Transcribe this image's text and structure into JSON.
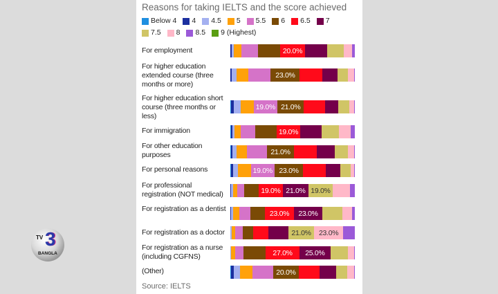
{
  "logo": {
    "tv": "TV",
    "number": "3",
    "name": "BANGLA"
  },
  "chart_data": {
    "type": "bar",
    "orientation": "horizontal-stacked-100",
    "title": "Reasons for taking IELTS and the score achieved",
    "source": "Source: IELTS",
    "legend": [
      {
        "name": "Below 4",
        "color": "#1f8fe0"
      },
      {
        "name": "4",
        "color": "#1c2fa0"
      },
      {
        "name": "4.5",
        "color": "#a4b0f0"
      },
      {
        "name": "5",
        "color": "#ffa10a"
      },
      {
        "name": "5.5",
        "color": "#d573c8"
      },
      {
        "name": "6",
        "color": "#7a4a05"
      },
      {
        "name": "6.5",
        "color": "#ff0a1a"
      },
      {
        "name": "7",
        "color": "#74004a"
      },
      {
        "name": "7.5",
        "color": "#d0c566"
      },
      {
        "name": "8",
        "color": "#ffb8c8"
      },
      {
        "name": "8.5",
        "color": "#9b5ad8"
      },
      {
        "name": "9 (Highest)",
        "color": "#5a9e12"
      }
    ],
    "label_colors": {
      "5.5": "#ffffff",
      "6": "#ffffff",
      "6.5": "#ffffff",
      "7": "#ffffff",
      "7.5": "#333333",
      "8": "#333333"
    },
    "categories": [
      "For employment",
      "For higher education extended course (three months or more)",
      "For higher education short course (three months or less)",
      "For immigration",
      "For other education purposes",
      "For personal reasons",
      "For professional registration (NOT medical)",
      "For registration as a dentist",
      "For registration as a doctor",
      "For registration as a nurse (including CGFNS)",
      "(Other)"
    ],
    "series": [
      {
        "name": "Below 4",
        "values": [
          0,
          0,
          0.5,
          0.5,
          0.5,
          0.5,
          0,
          0,
          0,
          0,
          0.5
        ]
      },
      {
        "name": "4",
        "values": [
          1,
          1,
          2,
          1,
          1,
          1.5,
          0.5,
          0.5,
          0,
          0,
          2
        ]
      },
      {
        "name": "4.5",
        "values": [
          2,
          4,
          5.5,
          2,
          3.5,
          4,
          2,
          2,
          1,
          0.5,
          5
        ]
      },
      {
        "name": "5",
        "values": [
          6,
          9,
          10.5,
          5,
          8,
          10.5,
          3,
          5,
          3,
          3.5,
          10
        ]
      },
      {
        "name": "5.5",
        "values": [
          13,
          18,
          19,
          11,
          16,
          19,
          5.5,
          8.5,
          6,
          6.5,
          17
        ]
      },
      {
        "name": "6",
        "values": [
          18,
          23,
          21,
          17,
          21,
          23,
          12,
          12,
          8.5,
          18,
          20
        ]
      },
      {
        "name": "6.5",
        "values": [
          20,
          18,
          17,
          19,
          18,
          18,
          19,
          23,
          12,
          27,
          17
        ]
      },
      {
        "name": "7",
        "values": [
          18,
          12,
          10.5,
          17,
          14.5,
          12,
          21,
          23,
          16,
          25,
          13
        ]
      },
      {
        "name": "7.5",
        "values": [
          13,
          8,
          8.5,
          13.5,
          10,
          8,
          19,
          16,
          21,
          14,
          9
        ]
      },
      {
        "name": "8",
        "values": [
          7,
          5,
          4,
          9,
          5,
          3,
          14,
          8,
          23,
          5,
          5.5
        ]
      },
      {
        "name": "8.5",
        "values": [
          2,
          0.5,
          0.5,
          3.5,
          0.5,
          0.5,
          4,
          2,
          9.5,
          0.5,
          0.5
        ]
      },
      {
        "name": "9 (Highest)",
        "values": [
          0,
          0,
          0,
          0,
          0,
          0,
          0,
          0,
          0,
          0,
          0
        ]
      }
    ],
    "data_labels": [
      [
        {
          "series": "6.5",
          "text": "20.0%"
        }
      ],
      [
        {
          "series": "6",
          "text": "23.0%"
        }
      ],
      [
        {
          "series": "5.5",
          "text": "19.0%"
        },
        {
          "series": "6",
          "text": "21.0%"
        }
      ],
      [
        {
          "series": "6.5",
          "text": "19.0%"
        }
      ],
      [
        {
          "series": "6",
          "text": "21.0%"
        }
      ],
      [
        {
          "series": "5.5",
          "text": "19.0%"
        },
        {
          "series": "6",
          "text": "23.0%"
        }
      ],
      [
        {
          "series": "6.5",
          "text": "19.0%"
        },
        {
          "series": "7",
          "text": "21.0%"
        },
        {
          "series": "7.5",
          "text": "19.0%"
        }
      ],
      [
        {
          "series": "6.5",
          "text": "23.0%"
        },
        {
          "series": "7",
          "text": "23.0%"
        }
      ],
      [
        {
          "series": "7.5",
          "text": "21.0%"
        },
        {
          "series": "8",
          "text": "23.0%"
        }
      ],
      [
        {
          "series": "6.5",
          "text": "27.0%"
        },
        {
          "series": "7",
          "text": "25.0%"
        }
      ],
      [
        {
          "series": "6",
          "text": "20.0%"
        }
      ]
    ],
    "xlim": [
      0,
      100
    ],
    "grid": false,
    "legend_position": "top"
  }
}
